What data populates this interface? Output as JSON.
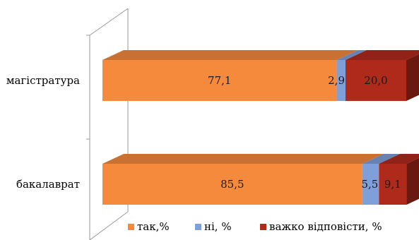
{
  "chart_data": {
    "type": "bar",
    "orientation": "horizontal",
    "stacked": true,
    "style": "3d",
    "categories": [
      "магістратура",
      "бакалаврат"
    ],
    "series": [
      {
        "name": "так,%",
        "values": [
          77.1,
          85.5
        ],
        "labels": [
          "77,1",
          "85,5"
        ],
        "color": "#f58a3d"
      },
      {
        "name": "ні, %",
        "values": [
          2.9,
          5.5
        ],
        "labels": [
          "2,9",
          "5,5"
        ],
        "color": "#7f9fdb"
      },
      {
        "name": "важко відповісти, %",
        "values": [
          20.0,
          9.1
        ],
        "labels": [
          "20,0",
          "9,1"
        ],
        "color": "#b02a1c"
      }
    ],
    "xlim": [
      0,
      100
    ],
    "legend_position": "bottom",
    "grid": false
  }
}
